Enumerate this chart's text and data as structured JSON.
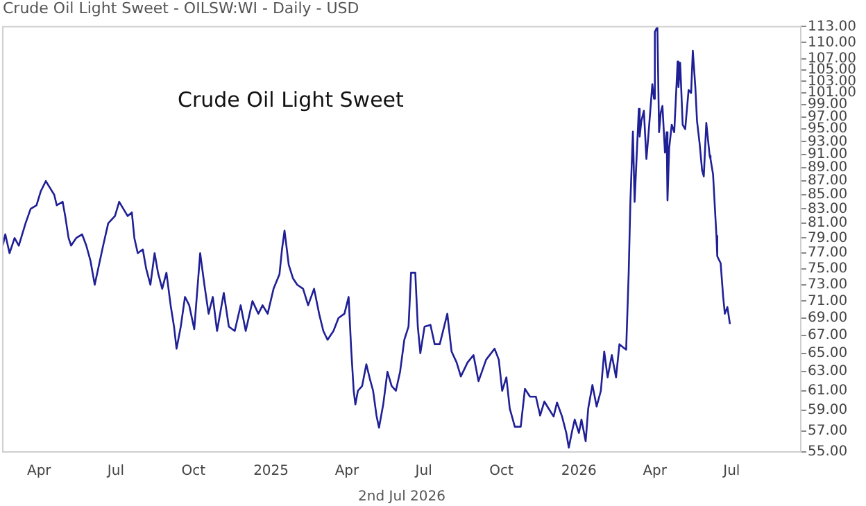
{
  "chart_data": {
    "type": "line",
    "title": "Crude Oil Light Sweet - OILSW:WI - Daily - USD",
    "annotations": [
      "Crude Oil Light Sweet",
      "2nd Jul 2026"
    ],
    "x": [
      "2024-02-18",
      "2024-02-21",
      "2024-02-26",
      "2024-03-03",
      "2024-03-08",
      "2024-03-16",
      "2024-03-22",
      "2024-03-29",
      "2024-04-03",
      "2024-04-09",
      "2024-04-14",
      "2024-04-19",
      "2024-04-22",
      "2024-04-29",
      "2024-05-02",
      "2024-05-06",
      "2024-05-09",
      "2024-05-15",
      "2024-05-22",
      "2024-05-27",
      "2024-06-01",
      "2024-06-06",
      "2024-06-16",
      "2024-06-22",
      "2024-06-30",
      "2024-07-05",
      "2024-07-10",
      "2024-07-15",
      "2024-07-20",
      "2024-07-23",
      "2024-07-27",
      "2024-08-02",
      "2024-08-06",
      "2024-08-11",
      "2024-08-16",
      "2024-08-20",
      "2024-08-25",
      "2024-08-30",
      "2024-09-04",
      "2024-09-08",
      "2024-09-11",
      "2024-09-16",
      "2024-09-21",
      "2024-09-26",
      "2024-10-02",
      "2024-10-09",
      "2024-10-14",
      "2024-10-19",
      "2024-10-24",
      "2024-10-29",
      "2024-11-06",
      "2024-11-12",
      "2024-11-19",
      "2024-11-26",
      "2024-12-02",
      "2024-12-10",
      "2024-12-17",
      "2024-12-22",
      "2024-12-28",
      "2025-01-04",
      "2025-01-11",
      "2025-01-14",
      "2025-01-17",
      "2025-01-22",
      "2025-01-27",
      "2025-02-01",
      "2025-02-08",
      "2025-02-14",
      "2025-02-21",
      "2025-02-27",
      "2025-03-04",
      "2025-03-09",
      "2025-03-16",
      "2025-03-22",
      "2025-03-29",
      "2025-04-03",
      "2025-04-06",
      "2025-04-09",
      "2025-04-11",
      "2025-04-14",
      "2025-04-19",
      "2025-04-24",
      "2025-04-28",
      "2025-05-02",
      "2025-05-06",
      "2025-05-09",
      "2025-05-14",
      "2025-05-19",
      "2025-05-24",
      "2025-05-29",
      "2025-06-03",
      "2025-06-08",
      "2025-06-13",
      "2025-06-16",
      "2025-06-21",
      "2025-06-24",
      "2025-06-27",
      "2025-07-02",
      "2025-07-09",
      "2025-07-14",
      "2025-07-20",
      "2025-07-29",
      "2025-08-03",
      "2025-08-09",
      "2025-08-14",
      "2025-08-22",
      "2025-08-29",
      "2025-09-04",
      "2025-09-13",
      "2025-09-23",
      "2025-09-28",
      "2025-10-02",
      "2025-10-07",
      "2025-10-11",
      "2025-10-17",
      "2025-10-24",
      "2025-10-29",
      "2025-11-04",
      "2025-11-11",
      "2025-11-16",
      "2025-11-21",
      "2025-11-26",
      "2025-12-02",
      "2025-12-06",
      "2025-12-12",
      "2025-12-17",
      "2025-12-20",
      "2025-12-24",
      "2025-12-27",
      "2026-01-01",
      "2026-01-04",
      "2026-01-09",
      "2026-01-12",
      "2026-01-17",
      "2026-01-22",
      "2026-01-27",
      "2026-01-31",
      "2026-02-04",
      "2026-02-09",
      "2026-02-14",
      "2026-02-18",
      "2026-02-23",
      "2026-02-26",
      "2026-03-01",
      "2026-03-03",
      "2026-03-06",
      "2026-03-08",
      "2026-03-13",
      "2026-03-14",
      "2026-03-16",
      "2026-03-19",
      "2026-03-22",
      "2026-03-24",
      "2026-03-29",
      "2026-03-31",
      "2026-04-01",
      "2026-04-04",
      "2026-04-06",
      "2026-04-08",
      "2026-04-10",
      "2026-04-13",
      "2026-04-15",
      "2026-04-16",
      "2026-04-18",
      "2026-04-21",
      "2026-04-24",
      "2026-04-28",
      "2026-04-29",
      "2026-05-01",
      "2026-05-04",
      "2026-05-07",
      "2026-05-11",
      "2026-05-14",
      "2026-05-16",
      "2026-05-19",
      "2026-05-21",
      "2026-05-24",
      "2026-05-27",
      "2026-05-29",
      "2026-06-01",
      "2026-06-05",
      "2026-06-06",
      "2026-06-09",
      "2026-06-13",
      "2026-06-14",
      "2026-06-18",
      "2026-06-21",
      "2026-06-23",
      "2026-06-26",
      "2026-06-29"
    ],
    "series": [
      {
        "color": "#1f1f96",
        "values": [
          78,
          79.5,
          77,
          79,
          78,
          81,
          83,
          83.5,
          85.5,
          87,
          86,
          85,
          83.5,
          84,
          82,
          79,
          78,
          79,
          79.5,
          78,
          76,
          73,
          78,
          81,
          82,
          84,
          83,
          82,
          82.5,
          79,
          77,
          77.5,
          75,
          73,
          77,
          74.5,
          72.5,
          74.5,
          70.5,
          68,
          65.5,
          68,
          71.5,
          70.5,
          67.7,
          77,
          73,
          69.5,
          71.5,
          67.5,
          72,
          68,
          67.5,
          70.5,
          67.5,
          71,
          69.5,
          70.5,
          69.5,
          72.5,
          74.3,
          77.5,
          80,
          75.5,
          73.8,
          73,
          72.5,
          70.5,
          72.5,
          69.5,
          67.5,
          66.5,
          67.5,
          69,
          69.5,
          71.5,
          65.5,
          61,
          59.6,
          61,
          61.5,
          63.8,
          62.3,
          61,
          58.5,
          57.3,
          59.6,
          63,
          61.5,
          61,
          63,
          66.5,
          68,
          74.5,
          74.5,
          68,
          65,
          68,
          68.2,
          66,
          66,
          69.5,
          65.2,
          64,
          62.5,
          64,
          64.8,
          62,
          64.3,
          65.5,
          64.3,
          61,
          62.4,
          59.2,
          57.4,
          57.4,
          61.2,
          60.4,
          60.4,
          58.5,
          59.9,
          59.2,
          58.4,
          59.8,
          58.4,
          56.8,
          55.4,
          57,
          58.1,
          56.8,
          58.1,
          56,
          59.2,
          61.6,
          59.4,
          61,
          65.2,
          62.4,
          64.8,
          62.4,
          66,
          65.6,
          65.4,
          74.5,
          84,
          94.6,
          84,
          98.3,
          93.8,
          96.3,
          98,
          90.3,
          93.4,
          102.5,
          100,
          112,
          113,
          94.5,
          97.7,
          98.8,
          91.3,
          94.5,
          84.2,
          92,
          95.7,
          94.5,
          106.5,
          102,
          106.3,
          95.7,
          95,
          101.5,
          101,
          108.5,
          102,
          96.3,
          92.8,
          88.6,
          87.7,
          96,
          90.8,
          90.3,
          88,
          79.3,
          76.6,
          75.7,
          71.5,
          69.5,
          70.3,
          68.3
        ]
      }
    ],
    "xlim": [
      "2024-02-18",
      "2026-09-21"
    ],
    "xticks": [
      {
        "value": "2024-04-01",
        "label": "Apr"
      },
      {
        "value": "2024-07-01",
        "label": "Jul"
      },
      {
        "value": "2024-10-01",
        "label": "Oct"
      },
      {
        "value": "2025-01-01",
        "label": "2025"
      },
      {
        "value": "2025-04-01",
        "label": "Apr"
      },
      {
        "value": "2025-07-01",
        "label": "Jul"
      },
      {
        "value": "2025-10-01",
        "label": "Oct"
      },
      {
        "value": "2026-01-01",
        "label": "2026"
      },
      {
        "value": "2026-04-01",
        "label": "Apr"
      },
      {
        "value": "2026-07-01",
        "label": "Jul"
      }
    ],
    "ylim": [
      55,
      113
    ],
    "log": true,
    "yticks": [
      {
        "value": 55,
        "label": "55.00"
      },
      {
        "value": 57,
        "label": "57.00"
      },
      {
        "value": 59,
        "label": "59.00"
      },
      {
        "value": 61,
        "label": "61.00"
      },
      {
        "value": 63,
        "label": "63.00"
      },
      {
        "value": 65,
        "label": "65.00"
      },
      {
        "value": 67,
        "label": "67.00"
      },
      {
        "value": 69,
        "label": "69.00"
      },
      {
        "value": 71,
        "label": "71.00"
      },
      {
        "value": 73,
        "label": "73.00"
      },
      {
        "value": 75,
        "label": "75.00"
      },
      {
        "value": 77,
        "label": "77.00"
      },
      {
        "value": 79,
        "label": "79.00"
      },
      {
        "value": 81,
        "label": "81.00"
      },
      {
        "value": 83,
        "label": "83.00"
      },
      {
        "value": 85,
        "label": "85.00"
      },
      {
        "value": 87,
        "label": "87.00"
      },
      {
        "value": 89,
        "label": "89.00"
      },
      {
        "value": 91,
        "label": "91.00"
      },
      {
        "value": 93,
        "label": "93.00"
      },
      {
        "value": 95,
        "label": "95.00"
      },
      {
        "value": 97,
        "label": "97.00"
      },
      {
        "value": 99,
        "label": "99.00"
      },
      {
        "value": 101,
        "label": "101.00"
      },
      {
        "value": 103,
        "label": "103.00"
      },
      {
        "value": 105,
        "label": "105.00"
      },
      {
        "value": 107,
        "label": "107.00"
      },
      {
        "value": 110,
        "label": "110.00"
      },
      {
        "value": 113,
        "label": "113.00"
      }
    ],
    "grid": false,
    "legend": false,
    "marker": "none",
    "line_style": "solid"
  }
}
